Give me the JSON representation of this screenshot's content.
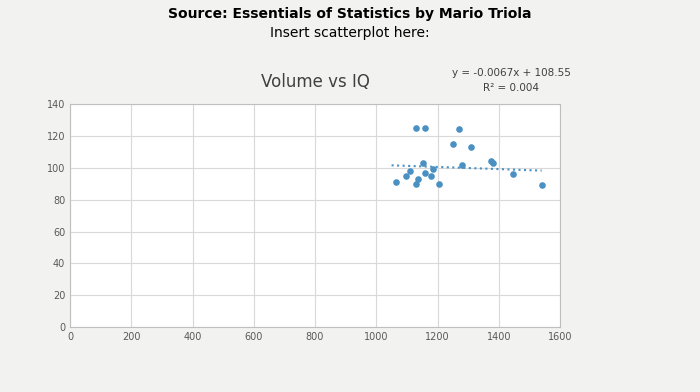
{
  "header": {
    "source": "Source: Essentials of Statistics by Mario Triola",
    "instruction": "Insert scatterplot here:"
  },
  "chart_data": {
    "type": "scatter",
    "title": "Volume vs IQ",
    "annotations": [
      "y = -0.0067x + 108.55",
      "R² = 0.004"
    ],
    "series": [
      {
        "type": "scatter",
        "color": "#4a90c2",
        "marker": "circle",
        "x": [
          1130,
          1159,
          1270,
          1063,
          1098,
          1111,
          1130,
          1136,
          1152,
          1159,
          1178,
          1184,
          1206,
          1249,
          1281,
          1311,
          1375,
          1381,
          1448,
          1540
        ],
        "values": [
          125,
          125,
          124,
          91,
          95,
          98,
          90,
          93,
          103,
          97,
          95,
          99,
          90,
          115,
          102,
          113,
          104,
          103,
          96,
          89
        ]
      },
      {
        "type": "line",
        "color": "#4a90c2",
        "line_style": "dotted",
        "x": [
          1050,
          1540
        ],
        "values": [
          101.5,
          98.2
        ]
      }
    ],
    "xlim": [
      0,
      1600
    ],
    "xticks": [
      0,
      200,
      400,
      600,
      800,
      1000,
      1200,
      1400,
      1600
    ],
    "ylim": [
      0,
      140
    ],
    "yticks": [
      0,
      20,
      40,
      60,
      80,
      100,
      120,
      140
    ],
    "grid": true
  }
}
